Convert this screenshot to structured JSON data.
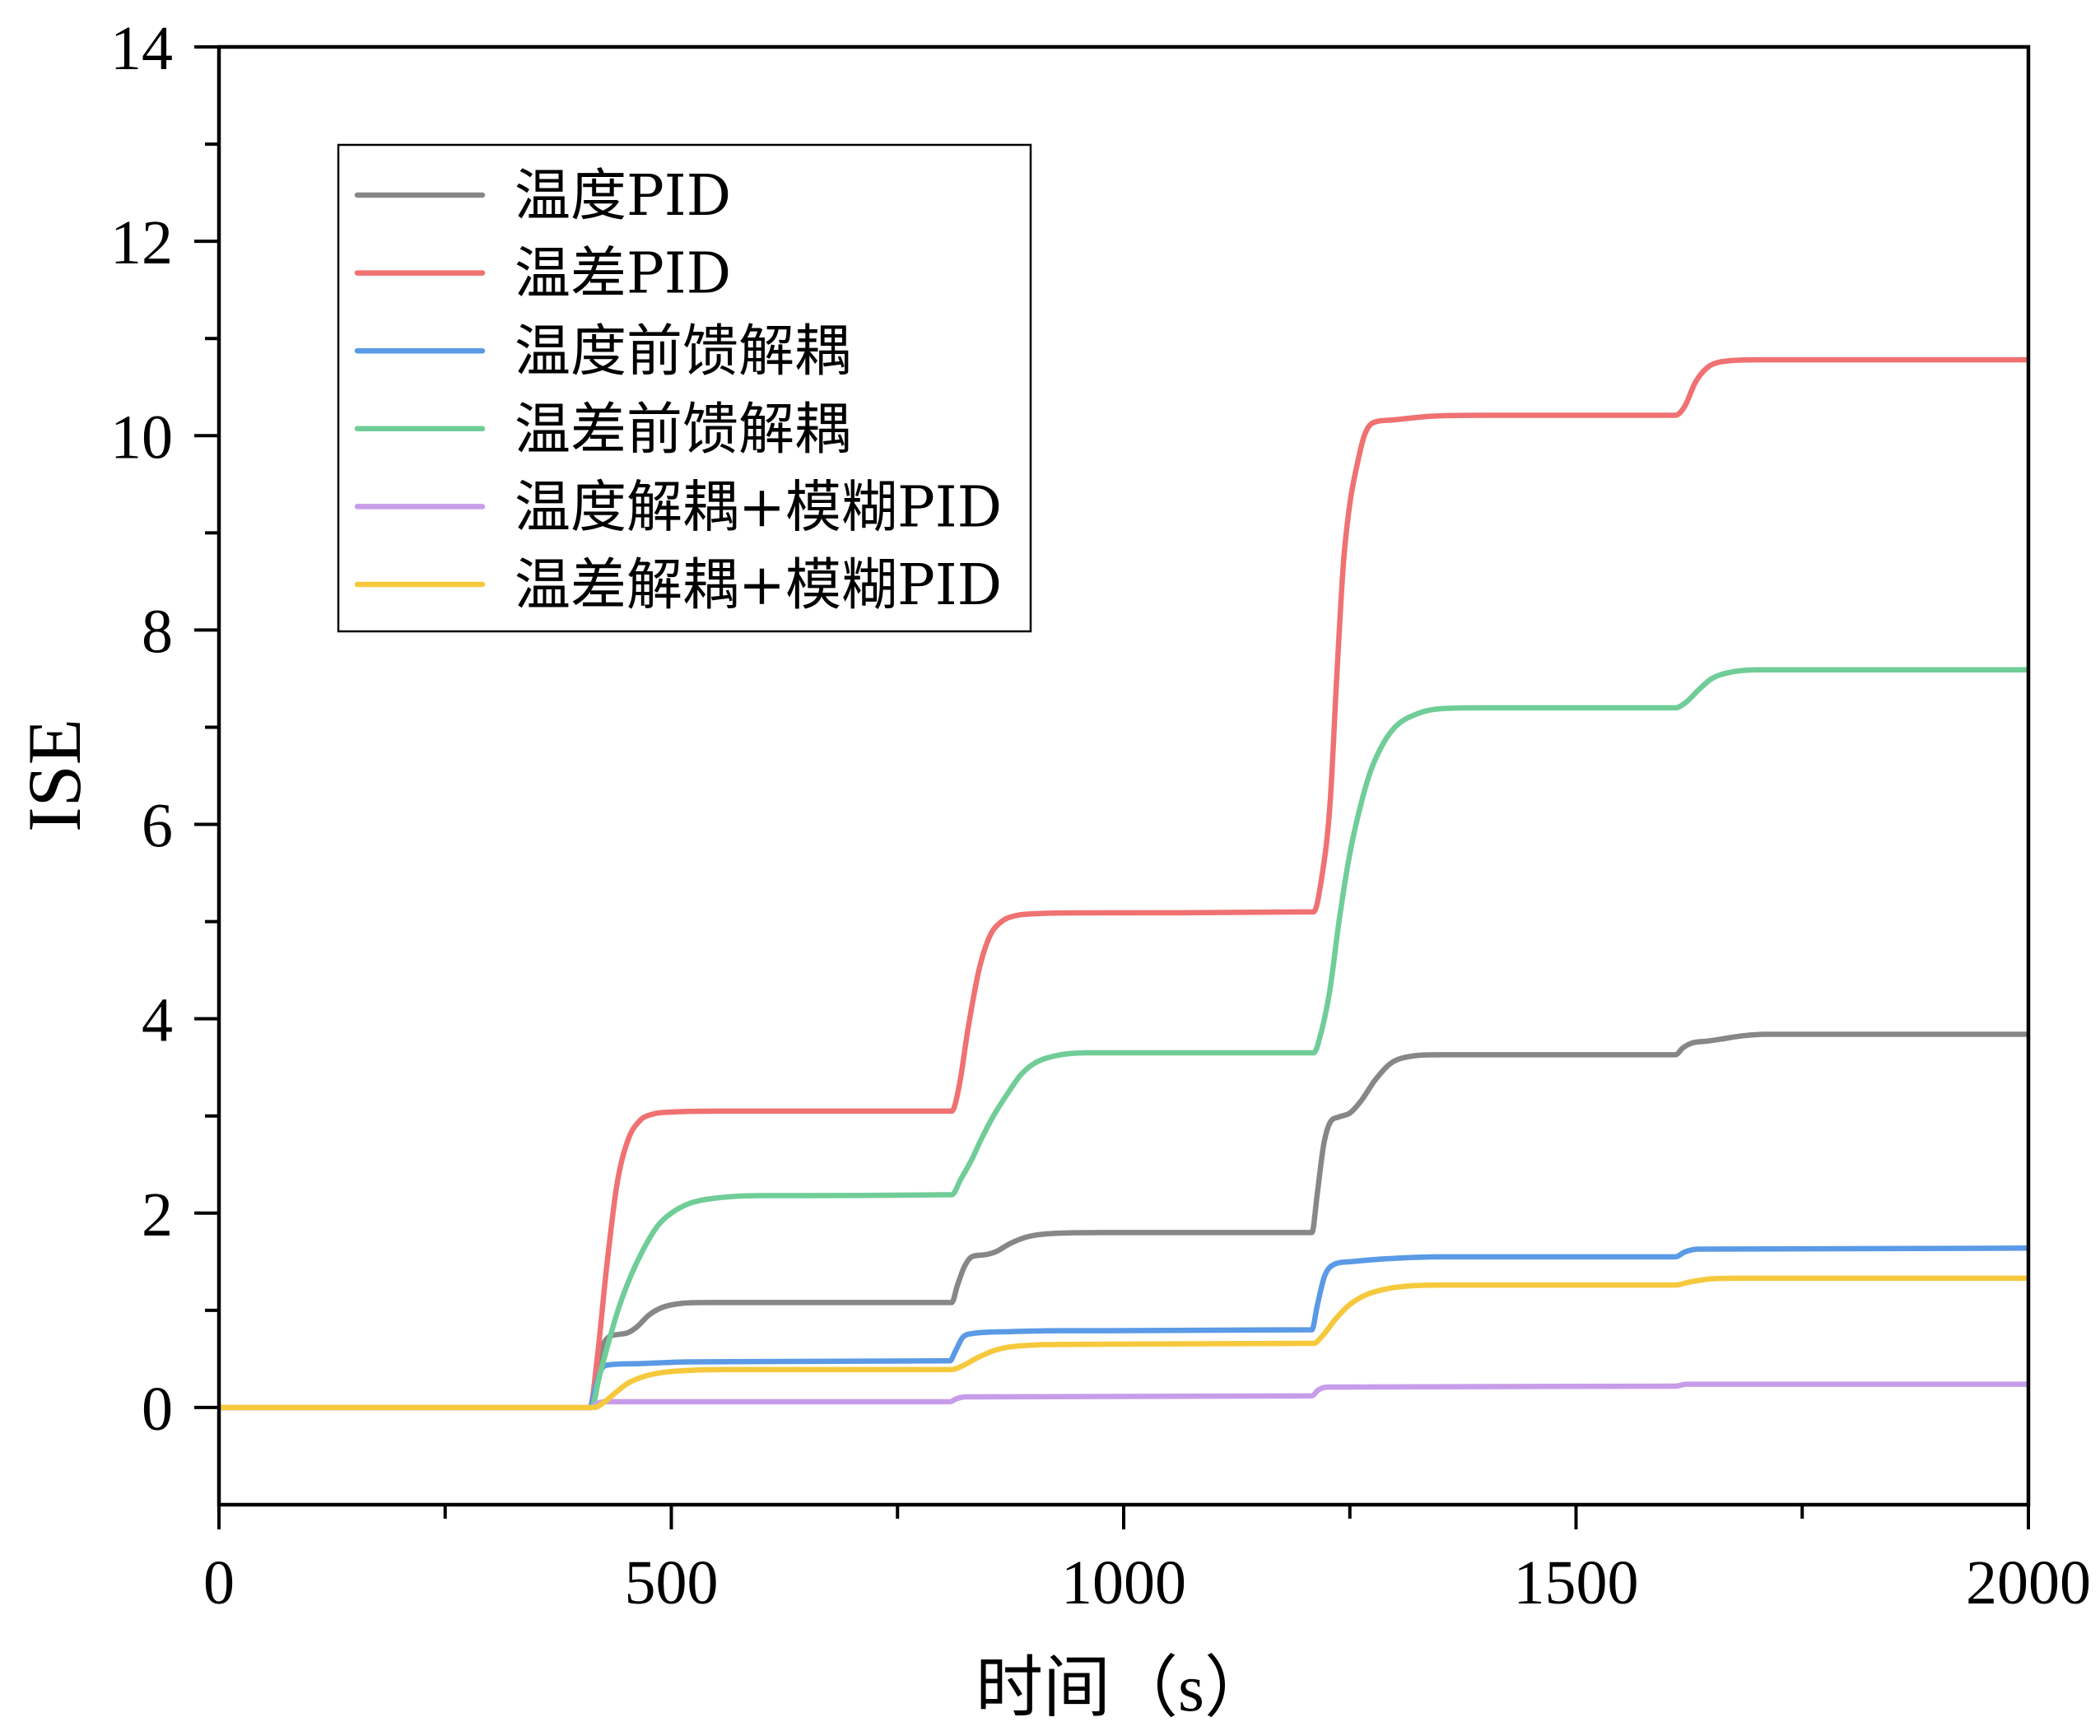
{
  "chart_data": {
    "type": "line",
    "xlabel": "时间（s）",
    "ylabel": "ISE",
    "xlim": [
      0,
      2000
    ],
    "ylim": [
      -1,
      14
    ],
    "xticks": [
      0,
      500,
      1000,
      1500,
      2000
    ],
    "yticks": [
      0,
      2,
      4,
      6,
      8,
      10,
      12,
      14
    ],
    "x_minor_ticks": [
      250,
      750,
      1250,
      1750
    ],
    "y_minor_ticks": [
      1,
      3,
      5,
      7,
      9,
      11,
      13
    ],
    "grid": false,
    "series": [
      {
        "name": "温度PID",
        "color": "#878787",
        "points": [
          [
            0,
            0
          ],
          [
            410,
            0
          ],
          [
            416,
            0.25
          ],
          [
            423,
            0.6
          ],
          [
            430,
            0.72
          ],
          [
            440,
            0.75
          ],
          [
            452,
            0.77
          ],
          [
            462,
            0.83
          ],
          [
            475,
            0.95
          ],
          [
            490,
            1.03
          ],
          [
            510,
            1.07
          ],
          [
            540,
            1.08
          ],
          [
            810,
            1.08
          ],
          [
            816,
            1.25
          ],
          [
            824,
            1.45
          ],
          [
            832,
            1.55
          ],
          [
            845,
            1.57
          ],
          [
            858,
            1.6
          ],
          [
            875,
            1.69
          ],
          [
            895,
            1.76
          ],
          [
            920,
            1.79
          ],
          [
            980,
            1.8
          ],
          [
            1208,
            1.8
          ],
          [
            1214,
            2.2
          ],
          [
            1221,
            2.7
          ],
          [
            1228,
            2.93
          ],
          [
            1238,
            2.99
          ],
          [
            1250,
            3.03
          ],
          [
            1262,
            3.15
          ],
          [
            1278,
            3.37
          ],
          [
            1295,
            3.54
          ],
          [
            1315,
            3.61
          ],
          [
            1350,
            3.63
          ],
          [
            1610,
            3.63
          ],
          [
            1618,
            3.7
          ],
          [
            1628,
            3.75
          ],
          [
            1645,
            3.77
          ],
          [
            1660,
            3.79
          ],
          [
            1680,
            3.82
          ],
          [
            1710,
            3.84
          ],
          [
            2000,
            3.84
          ]
        ]
      },
      {
        "name": "温差PID",
        "color": "#f07172",
        "points": [
          [
            0,
            0
          ],
          [
            410,
            0
          ],
          [
            418,
            0.5
          ],
          [
            428,
            1.4
          ],
          [
            440,
            2.3
          ],
          [
            452,
            2.75
          ],
          [
            465,
            2.95
          ],
          [
            480,
            3.02
          ],
          [
            500,
            3.04
          ],
          [
            550,
            3.05
          ],
          [
            810,
            3.05
          ],
          [
            818,
            3.3
          ],
          [
            828,
            3.9
          ],
          [
            840,
            4.5
          ],
          [
            852,
            4.85
          ],
          [
            865,
            5.0
          ],
          [
            880,
            5.06
          ],
          [
            900,
            5.08
          ],
          [
            950,
            5.09
          ],
          [
            1210,
            5.1
          ],
          [
            1218,
            5.4
          ],
          [
            1228,
            6.2
          ],
          [
            1236,
            7.6
          ],
          [
            1243,
            8.7
          ],
          [
            1250,
            9.3
          ],
          [
            1258,
            9.7
          ],
          [
            1266,
            10.0
          ],
          [
            1275,
            10.13
          ],
          [
            1295,
            10.16
          ],
          [
            1340,
            10.2
          ],
          [
            1400,
            10.21
          ],
          [
            1610,
            10.21
          ],
          [
            1620,
            10.3
          ],
          [
            1632,
            10.55
          ],
          [
            1645,
            10.7
          ],
          [
            1660,
            10.76
          ],
          [
            1700,
            10.78
          ],
          [
            2000,
            10.78
          ]
        ]
      },
      {
        "name": "温度前馈解耦",
        "color": "#5a9ae6",
        "points": [
          [
            0,
            0
          ],
          [
            410,
            0
          ],
          [
            416,
            0.2
          ],
          [
            423,
            0.4
          ],
          [
            432,
            0.44
          ],
          [
            460,
            0.45
          ],
          [
            520,
            0.47
          ],
          [
            808,
            0.48
          ],
          [
            814,
            0.58
          ],
          [
            822,
            0.72
          ],
          [
            832,
            0.76
          ],
          [
            870,
            0.78
          ],
          [
            930,
            0.79
          ],
          [
            1208,
            0.8
          ],
          [
            1214,
            1.05
          ],
          [
            1222,
            1.35
          ],
          [
            1232,
            1.47
          ],
          [
            1250,
            1.5
          ],
          [
            1290,
            1.53
          ],
          [
            1350,
            1.55
          ],
          [
            1610,
            1.55
          ],
          [
            1620,
            1.6
          ],
          [
            1635,
            1.63
          ],
          [
            2000,
            1.64
          ]
        ]
      },
      {
        "name": "温差前馈解耦",
        "color": "#70cd98",
        "points": [
          [
            0,
            0
          ],
          [
            412,
            0
          ],
          [
            420,
            0.3
          ],
          [
            430,
            0.65
          ],
          [
            441,
            1.0
          ],
          [
            455,
            1.35
          ],
          [
            471,
            1.66
          ],
          [
            485,
            1.87
          ],
          [
            500,
            2.0
          ],
          [
            520,
            2.1
          ],
          [
            545,
            2.15
          ],
          [
            600,
            2.18
          ],
          [
            810,
            2.19
          ],
          [
            820,
            2.35
          ],
          [
            832,
            2.55
          ],
          [
            842,
            2.75
          ],
          [
            856,
            3.0
          ],
          [
            871,
            3.22
          ],
          [
            886,
            3.42
          ],
          [
            901,
            3.54
          ],
          [
            925,
            3.62
          ],
          [
            960,
            3.65
          ],
          [
            1210,
            3.65
          ],
          [
            1218,
            3.85
          ],
          [
            1228,
            4.3
          ],
          [
            1238,
            5.0
          ],
          [
            1250,
            5.7
          ],
          [
            1262,
            6.2
          ],
          [
            1273,
            6.55
          ],
          [
            1288,
            6.85
          ],
          [
            1302,
            7.02
          ],
          [
            1325,
            7.14
          ],
          [
            1350,
            7.19
          ],
          [
            1400,
            7.2
          ],
          [
            1610,
            7.2
          ],
          [
            1622,
            7.26
          ],
          [
            1635,
            7.38
          ],
          [
            1650,
            7.5
          ],
          [
            1668,
            7.56
          ],
          [
            1700,
            7.59
          ],
          [
            2000,
            7.59
          ]
        ]
      },
      {
        "name": "温度解耦+模糊PID",
        "color": "#c79de9",
        "points": [
          [
            0,
            0
          ],
          [
            412,
            0
          ],
          [
            418,
            0.04
          ],
          [
            428,
            0.06
          ],
          [
            808,
            0.06
          ],
          [
            815,
            0.09
          ],
          [
            825,
            0.11
          ],
          [
            1208,
            0.12
          ],
          [
            1215,
            0.18
          ],
          [
            1225,
            0.21
          ],
          [
            1610,
            0.22
          ],
          [
            1622,
            0.24
          ],
          [
            2000,
            0.24
          ]
        ]
      },
      {
        "name": "温差解耦+模糊PID",
        "color": "#f6c93d",
        "points": [
          [
            0,
            0
          ],
          [
            415,
            0
          ],
          [
            425,
            0.05
          ],
          [
            438,
            0.15
          ],
          [
            452,
            0.25
          ],
          [
            470,
            0.32
          ],
          [
            490,
            0.36
          ],
          [
            515,
            0.38
          ],
          [
            560,
            0.39
          ],
          [
            810,
            0.39
          ],
          [
            822,
            0.43
          ],
          [
            838,
            0.51
          ],
          [
            855,
            0.58
          ],
          [
            872,
            0.62
          ],
          [
            895,
            0.64
          ],
          [
            940,
            0.65
          ],
          [
            1210,
            0.66
          ],
          [
            1220,
            0.74
          ],
          [
            1235,
            0.92
          ],
          [
            1250,
            1.06
          ],
          [
            1268,
            1.16
          ],
          [
            1290,
            1.22
          ],
          [
            1315,
            1.25
          ],
          [
            1360,
            1.26
          ],
          [
            1610,
            1.26
          ],
          [
            1625,
            1.29
          ],
          [
            1645,
            1.32
          ],
          [
            1675,
            1.33
          ],
          [
            2000,
            1.33
          ]
        ]
      }
    ]
  }
}
